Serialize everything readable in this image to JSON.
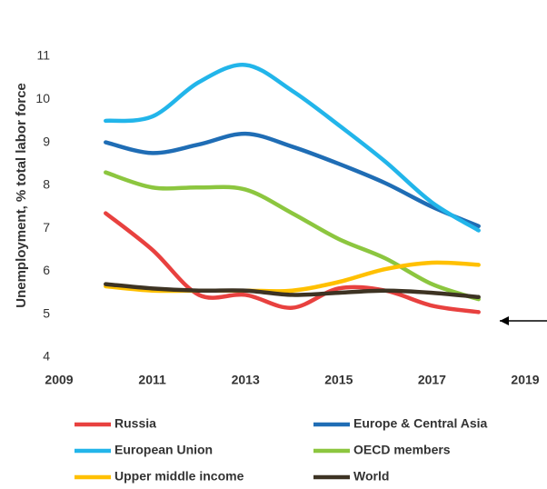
{
  "chart_data": {
    "type": "line",
    "y_label": "Unemployment, % total labor force",
    "x": [
      2010,
      2011,
      2012,
      2013,
      2014,
      2015,
      2016,
      2017,
      2018
    ],
    "xlim": [
      2009,
      2019
    ],
    "xticks": [
      2009,
      2011,
      2013,
      2015,
      2017,
      2019
    ],
    "ylim": [
      4,
      11
    ],
    "yticks": [
      4,
      5,
      6,
      7,
      8,
      9,
      10,
      11
    ],
    "series": [
      {
        "name": "Russia",
        "color": "#e8413f",
        "values": [
          7.35,
          6.5,
          5.45,
          5.45,
          5.15,
          5.6,
          5.55,
          5.2,
          5.05
        ]
      },
      {
        "name": "Europe & Central Asia",
        "color": "#1f6db5",
        "values": [
          9.0,
          8.75,
          8.95,
          9.2,
          8.9,
          8.5,
          8.05,
          7.5,
          7.05
        ]
      },
      {
        "name": "European Union",
        "color": "#22b5ea",
        "values": [
          9.5,
          9.6,
          10.4,
          10.8,
          10.2,
          9.4,
          8.55,
          7.6,
          6.95
        ]
      },
      {
        "name": "OECD members",
        "color": "#8cc63f",
        "values": [
          8.3,
          7.95,
          7.95,
          7.9,
          7.35,
          6.75,
          6.3,
          5.7,
          5.35
        ]
      },
      {
        "name": "Upper middle income",
        "color": "#ffc000",
        "values": [
          5.65,
          5.55,
          5.55,
          5.55,
          5.55,
          5.75,
          6.05,
          6.2,
          6.15
        ]
      },
      {
        "name": "World",
        "color": "#3d3323",
        "values": [
          5.7,
          5.6,
          5.55,
          5.55,
          5.45,
          5.5,
          5.55,
          5.5,
          5.4
        ]
      }
    ]
  }
}
